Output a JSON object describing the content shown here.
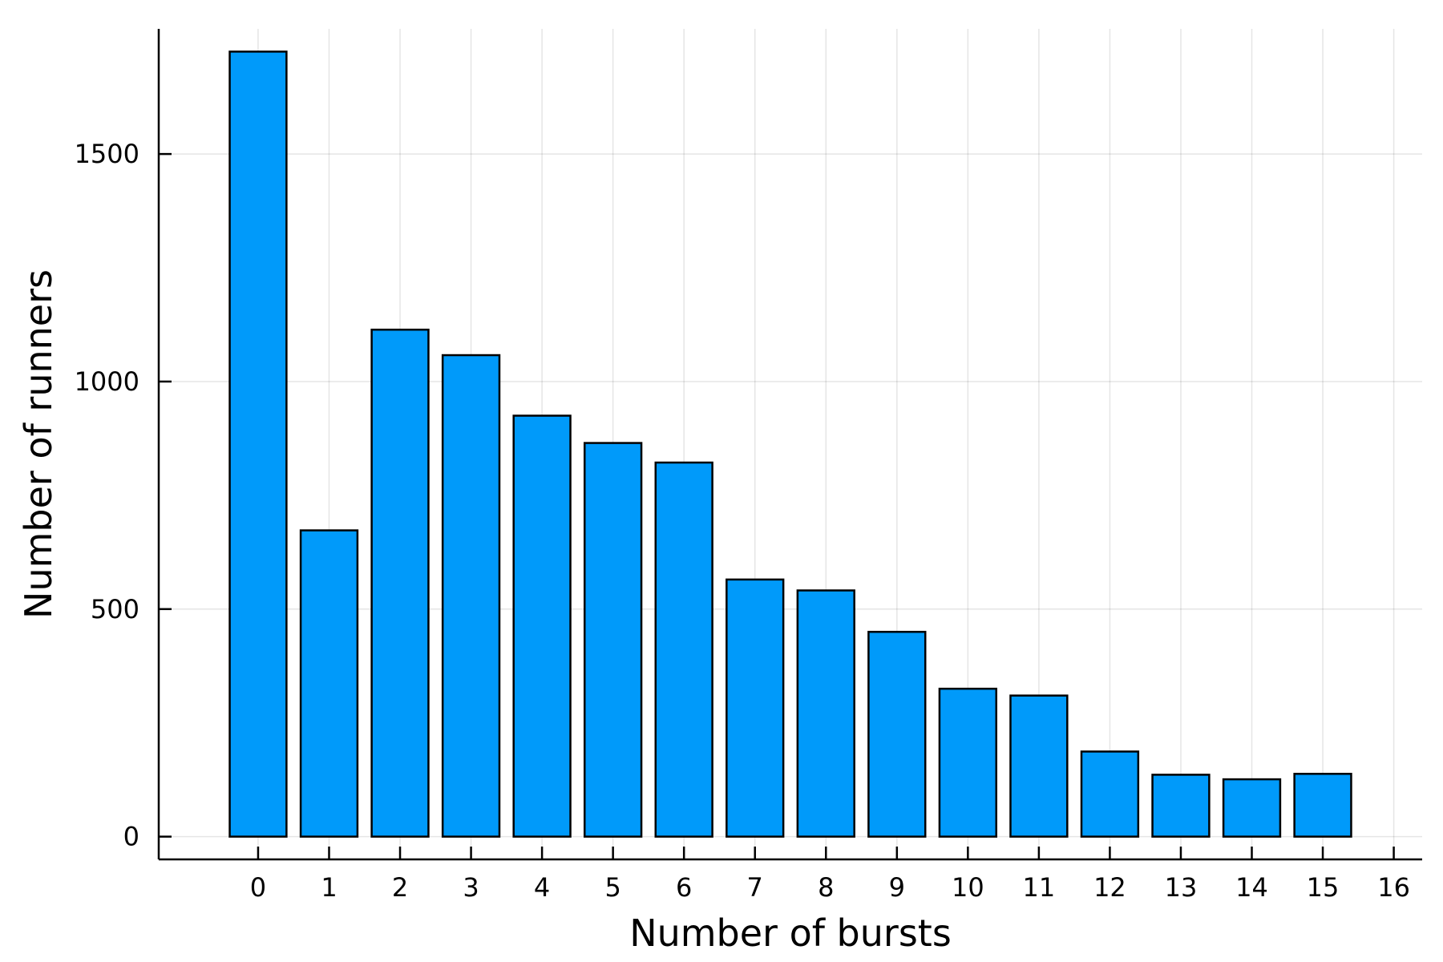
{
  "chart_data": {
    "type": "bar",
    "title": "",
    "xlabel": "Number of bursts",
    "ylabel": "Number of runners",
    "categories": [
      "0",
      "1",
      "2",
      "3",
      "4",
      "5",
      "6",
      "7",
      "8",
      "9",
      "10",
      "11",
      "12",
      "13",
      "14",
      "15"
    ],
    "values": [
      1725,
      673,
      1114,
      1058,
      925,
      865,
      822,
      565,
      541,
      450,
      325,
      310,
      187,
      136,
      126,
      138
    ],
    "x_ticks": [
      "0",
      "1",
      "2",
      "3",
      "4",
      "5",
      "6",
      "7",
      "8",
      "9",
      "10",
      "11",
      "12",
      "13",
      "14",
      "15",
      "16"
    ],
    "y_ticks": [
      "0",
      "500",
      "1000",
      "1500"
    ],
    "xlim": [
      -1.4,
      16.4
    ],
    "ylim": [
      -50,
      1775
    ],
    "grid": true,
    "bar_color": "#009AFA",
    "bar_edge_color": "#000000"
  }
}
